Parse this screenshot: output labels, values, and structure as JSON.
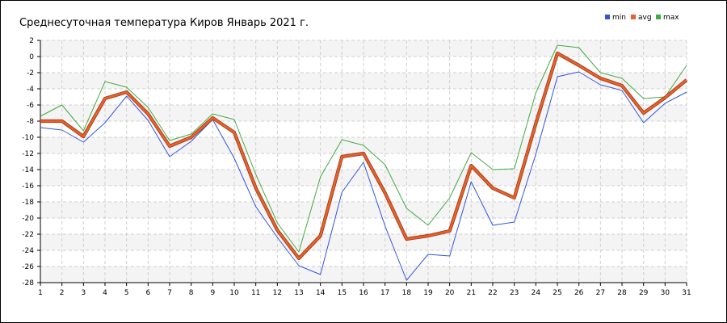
{
  "chart_data": {
    "type": "line",
    "title": "Среднесуточная температура Киров  Январь 2021 г.",
    "xlabel": "",
    "ylabel": "",
    "x": [
      1,
      2,
      3,
      4,
      5,
      6,
      7,
      8,
      9,
      10,
      11,
      12,
      13,
      14,
      15,
      16,
      17,
      18,
      19,
      20,
      21,
      22,
      23,
      24,
      25,
      26,
      27,
      28,
      29,
      30,
      31
    ],
    "ylim": [
      -28,
      2
    ],
    "y_ticks": [
      2,
      0,
      -2,
      -4,
      -6,
      -8,
      -10,
      -12,
      -14,
      -16,
      -18,
      -20,
      -22,
      -24,
      -26,
      -28
    ],
    "grid": true,
    "legend_position": "top-right",
    "series": [
      {
        "name": "min",
        "color": "#3355dd",
        "values": [
          -8.8,
          -9.1,
          -10.6,
          -8.2,
          -4.9,
          -7.9,
          -12.4,
          -10.5,
          -7.8,
          -12.6,
          -18.6,
          -22.4,
          -25.9,
          -27.0,
          -16.8,
          -13.1,
          -21.0,
          -27.7,
          -24.5,
          -24.7,
          -15.5,
          -20.9,
          -20.5,
          -12.1,
          -2.5,
          -1.9,
          -3.5,
          -4.2,
          -8.2,
          -5.8,
          -4.4
        ]
      },
      {
        "name": "avg",
        "color": "#e8602c",
        "values": [
          -8.0,
          -8.0,
          -9.9,
          -5.2,
          -4.4,
          -7.1,
          -11.1,
          -10.0,
          -7.6,
          -9.4,
          -16.3,
          -21.5,
          -25.0,
          -22.2,
          -12.4,
          -12.0,
          -16.9,
          -22.6,
          -22.2,
          -21.6,
          -13.5,
          -16.3,
          -17.5,
          -8.3,
          0.4,
          -1.1,
          -2.7,
          -3.6,
          -7.0,
          -5.1,
          -2.9
        ]
      },
      {
        "name": "max",
        "color": "#44aa44",
        "values": [
          -7.4,
          -6.0,
          -9.2,
          -3.1,
          -3.8,
          -6.3,
          -10.4,
          -9.6,
          -7.1,
          -7.8,
          -14.6,
          -20.6,
          -24.2,
          -14.9,
          -10.3,
          -11.0,
          -13.4,
          -18.8,
          -20.9,
          -17.5,
          -11.9,
          -14.0,
          -13.9,
          -4.5,
          1.4,
          1.1,
          -2.0,
          -2.7,
          -5.2,
          -5.0,
          -1.1
        ]
      }
    ]
  }
}
